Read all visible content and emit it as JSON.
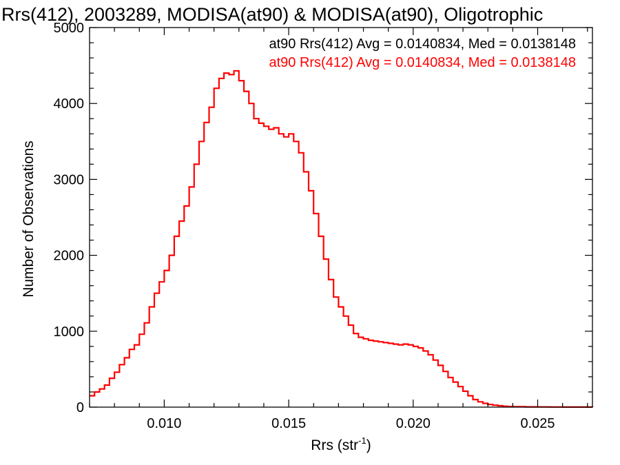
{
  "chart_data": {
    "type": "line",
    "title": "Rrs(412), 2003289, MODISA(at90) & MODISA(at90), Oligotrophic",
    "xlabel": "Rrs (str",
    "xlabel_sup": "-1",
    "xlabel_close": ")",
    "ylabel": "Number of Observations",
    "xlim": [
      0.007,
      0.0272
    ],
    "ylim": [
      0,
      5000
    ],
    "x_ticks": [
      0.01,
      0.015,
      0.02,
      0.025
    ],
    "x_tick_labels": [
      "0.010",
      "0.015",
      "0.020",
      "0.025"
    ],
    "y_ticks": [
      0,
      1000,
      2000,
      3000,
      4000,
      5000
    ],
    "y_tick_labels": [
      "0",
      "1000",
      "2000",
      "3000",
      "4000",
      "5000"
    ],
    "legend": [
      {
        "text": "at90 Rrs(412) Avg = 0.0140834, Med = 0.0138148",
        "color": "#000000"
      },
      {
        "text": "at90 Rrs(412) Avg = 0.0140834, Med = 0.0138148",
        "color": "#ff0000"
      }
    ],
    "legend_position": "top-right",
    "series": [
      {
        "color": "#ff0000",
        "step": true,
        "x": [
          0.007,
          0.0072,
          0.0074,
          0.0076,
          0.0078,
          0.008,
          0.0082,
          0.0084,
          0.0086,
          0.0088,
          0.009,
          0.0092,
          0.0094,
          0.0096,
          0.0098,
          0.01,
          0.0102,
          0.0104,
          0.0106,
          0.0108,
          0.011,
          0.0112,
          0.0114,
          0.0116,
          0.0118,
          0.012,
          0.0122,
          0.0124,
          0.0126,
          0.0128,
          0.013,
          0.0132,
          0.0134,
          0.0136,
          0.0138,
          0.014,
          0.0142,
          0.0144,
          0.0146,
          0.0148,
          0.015,
          0.0152,
          0.0154,
          0.0156,
          0.0158,
          0.016,
          0.0162,
          0.0164,
          0.0166,
          0.0168,
          0.017,
          0.0172,
          0.0174,
          0.0176,
          0.0178,
          0.018,
          0.0182,
          0.0184,
          0.0186,
          0.0188,
          0.019,
          0.0192,
          0.0194,
          0.0196,
          0.0198,
          0.02,
          0.0202,
          0.0204,
          0.0206,
          0.0208,
          0.021,
          0.0212,
          0.0214,
          0.0216,
          0.0218,
          0.022,
          0.0222,
          0.0224,
          0.0226,
          0.0228,
          0.023,
          0.0232,
          0.0234,
          0.0236,
          0.0238,
          0.024,
          0.0245,
          0.025,
          0.0255,
          0.026,
          0.0265,
          0.0272
        ],
        "y": [
          150,
          200,
          240,
          290,
          380,
          460,
          560,
          650,
          760,
          820,
          960,
          1110,
          1320,
          1500,
          1650,
          1800,
          2000,
          2250,
          2450,
          2650,
          2900,
          3200,
          3500,
          3750,
          3950,
          4200,
          4330,
          4400,
          4380,
          4430,
          4300,
          4160,
          4000,
          3800,
          3740,
          3700,
          3660,
          3680,
          3600,
          3560,
          3600,
          3500,
          3350,
          3100,
          2850,
          2550,
          2250,
          1950,
          1680,
          1450,
          1320,
          1200,
          1080,
          970,
          920,
          900,
          880,
          870,
          860,
          850,
          840,
          830,
          820,
          830,
          820,
          800,
          780,
          740,
          690,
          620,
          550,
          470,
          390,
          330,
          270,
          210,
          150,
          100,
          70,
          50,
          35,
          25,
          18,
          12,
          8,
          6,
          4,
          3,
          2,
          1,
          1,
          0
        ]
      }
    ],
    "grid": false
  }
}
